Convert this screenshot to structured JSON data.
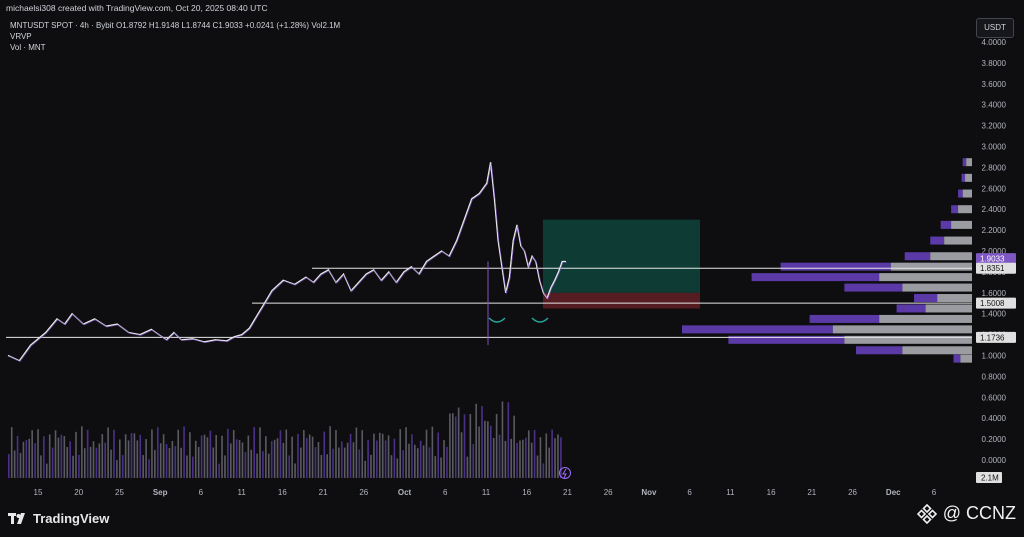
{
  "header": {
    "author_line": "michaelsi308 created with TradingView.com, Oct 20, 2025 08:40 UTC",
    "symbol": "MNTUSDT SPOT · 4h · Bybit",
    "ohlc": {
      "o_label": "O",
      "o": "1.8792",
      "h_label": "H",
      "h": "1.9148",
      "l_label": "L",
      "l": "1.8744",
      "c_label": "C",
      "c": "1.9033",
      "change": "+0.0241 (+1.28%)",
      "vol_label": "Vol",
      "vol": "2.1M"
    },
    "indicator1": "VRVP",
    "indicator2": "Vol · MNT",
    "currency": "USDT"
  },
  "footer": {
    "brand": "TradingView",
    "watermark": "@ CCNZ"
  },
  "chart_data": {
    "type": "candlestick",
    "y_axis_ticks": [
      "4.0000",
      "3.8000",
      "3.6000",
      "3.4000",
      "3.2000",
      "3.0000",
      "2.8000",
      "2.6000",
      "2.4000",
      "2.2000",
      "2.0000",
      "1.8000",
      "1.6000",
      "1.4000",
      "1.2000",
      "1.0000",
      "0.8000",
      "0.6000",
      "0.4000",
      "0.2000",
      "0.0000"
    ],
    "ylim": [
      0,
      4.1
    ],
    "x_axis_ticks": [
      "15",
      "20",
      "25",
      "Sep",
      "6",
      "11",
      "16",
      "21",
      "26",
      "Oct",
      "6",
      "11",
      "16",
      "21",
      "26",
      "Nov",
      "6",
      "11",
      "16",
      "21",
      "26",
      "Dec",
      "6"
    ],
    "price_tags": [
      {
        "value": "1.9033",
        "sub": "03:19:52",
        "color": "#7e57c2"
      },
      {
        "value": "1.8351",
        "color": "#e0e0e0"
      },
      {
        "value": "1.5008",
        "color": "#e0e0e0"
      },
      {
        "value": "1.1736",
        "color": "#e0e0e0"
      }
    ],
    "volume_tag": "2.1M",
    "horizontal_levels": [
      1.8351,
      1.5008,
      1.1736
    ],
    "position_box": {
      "entry": 1.6,
      "target": 2.3,
      "stop": 1.45
    },
    "price_path": [
      [
        0,
        1.0
      ],
      [
        6,
        0.95
      ],
      [
        12,
        1.1
      ],
      [
        20,
        1.22
      ],
      [
        26,
        1.35
      ],
      [
        30,
        1.3
      ],
      [
        34,
        1.4
      ],
      [
        40,
        1.3
      ],
      [
        46,
        1.35
      ],
      [
        52,
        1.28
      ],
      [
        58,
        1.3
      ],
      [
        64,
        1.22
      ],
      [
        70,
        1.2
      ],
      [
        76,
        1.25
      ],
      [
        80,
        1.2
      ],
      [
        84,
        1.15
      ],
      [
        88,
        1.22
      ],
      [
        92,
        1.15
      ],
      [
        98,
        1.16
      ],
      [
        104,
        1.13
      ],
      [
        110,
        1.15
      ],
      [
        116,
        1.14
      ],
      [
        120,
        1.18
      ],
      [
        124,
        1.2
      ],
      [
        128,
        1.26
      ],
      [
        132,
        1.38
      ],
      [
        136,
        1.5
      ],
      [
        140,
        1.62
      ],
      [
        146,
        1.72
      ],
      [
        152,
        1.68
      ],
      [
        158,
        1.75
      ],
      [
        162,
        1.7
      ],
      [
        166,
        1.78
      ],
      [
        170,
        1.82
      ],
      [
        174,
        1.7
      ],
      [
        178,
        1.78
      ],
      [
        182,
        1.62
      ],
      [
        186,
        1.7
      ],
      [
        190,
        1.78
      ],
      [
        194,
        1.82
      ],
      [
        198,
        1.72
      ],
      [
        202,
        1.8
      ],
      [
        206,
        1.7
      ],
      [
        210,
        1.8
      ],
      [
        214,
        1.85
      ],
      [
        218,
        1.78
      ],
      [
        222,
        1.9
      ],
      [
        226,
        1.95
      ],
      [
        230,
        2.0
      ],
      [
        234,
        1.95
      ],
      [
        238,
        2.1
      ],
      [
        242,
        2.3
      ],
      [
        246,
        2.5
      ],
      [
        250,
        2.55
      ],
      [
        254,
        2.65
      ],
      [
        256,
        2.85
      ],
      [
        258,
        2.5
      ],
      [
        260,
        2.1
      ],
      [
        262,
        1.85
      ],
      [
        264,
        1.6
      ],
      [
        266,
        1.75
      ],
      [
        268,
        2.1
      ],
      [
        270,
        2.25
      ],
      [
        272,
        2.05
      ],
      [
        274,
        2.0
      ],
      [
        276,
        1.85
      ],
      [
        278,
        1.95
      ],
      [
        280,
        1.9
      ],
      [
        282,
        1.72
      ],
      [
        284,
        1.6
      ],
      [
        286,
        1.55
      ],
      [
        288,
        1.65
      ],
      [
        290,
        1.72
      ],
      [
        292,
        1.8
      ],
      [
        294,
        1.9
      ],
      [
        296,
        1.9
      ]
    ],
    "volume_profile": [
      {
        "price": 2.85,
        "grey": 5,
        "purple": 3
      },
      {
        "price": 2.7,
        "grey": 6,
        "purple": 3
      },
      {
        "price": 2.55,
        "grey": 8,
        "purple": 4
      },
      {
        "price": 2.4,
        "grey": 12,
        "purple": 6
      },
      {
        "price": 2.25,
        "grey": 18,
        "purple": 9
      },
      {
        "price": 2.1,
        "grey": 24,
        "purple": 12
      },
      {
        "price": 1.95,
        "grey": 36,
        "purple": 22
      },
      {
        "price": 1.85,
        "grey": 70,
        "purple": 95
      },
      {
        "price": 1.75,
        "grey": 80,
        "purple": 110
      },
      {
        "price": 1.65,
        "grey": 60,
        "purple": 50
      },
      {
        "price": 1.55,
        "grey": 30,
        "purple": 20
      },
      {
        "price": 1.45,
        "grey": 40,
        "purple": 25
      },
      {
        "price": 1.35,
        "grey": 80,
        "purple": 60
      },
      {
        "price": 1.25,
        "grey": 120,
        "purple": 130
      },
      {
        "price": 1.15,
        "grey": 110,
        "purple": 100
      },
      {
        "price": 1.05,
        "grey": 60,
        "purple": 40
      },
      {
        "price": 0.97,
        "grey": 10,
        "purple": 6
      }
    ]
  }
}
